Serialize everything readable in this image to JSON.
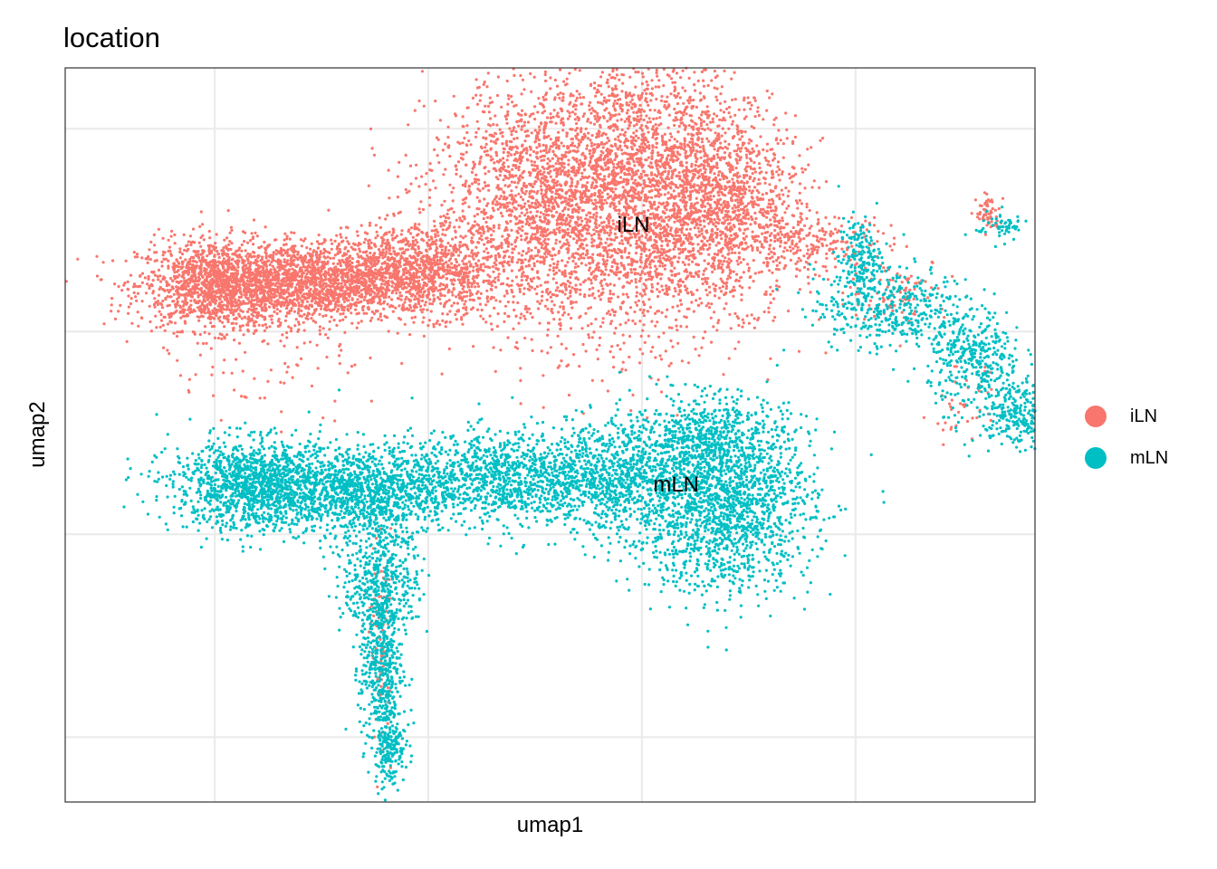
{
  "chart_data": {
    "type": "scatter",
    "title": "location",
    "xlabel": "umap1",
    "ylabel": "umap2",
    "grid": true,
    "legend_position": "right",
    "xlim": [
      -13.5,
      9.2
    ],
    "ylim": [
      -11.6,
      6.5
    ],
    "gridlines_x": [
      -10,
      -5,
      0,
      5
    ],
    "gridlines_y": [
      -10,
      -5,
      0,
      5
    ],
    "series": [
      {
        "name": "iLN",
        "color": "#F8766D",
        "clusters": [
          {
            "cx": -9.9,
            "cy": 1.15,
            "sx": 0.95,
            "sy": 0.55,
            "n": 1500
          },
          {
            "cx": -7.7,
            "cy": 1.2,
            "sx": 1.0,
            "sy": 0.5,
            "n": 1300
          },
          {
            "cx": -5.3,
            "cy": 1.5,
            "sx": 1.0,
            "sy": 0.55,
            "n": 1200
          },
          {
            "cx": -2.4,
            "cy": 3.2,
            "sx": 1.3,
            "sy": 1.5,
            "n": 1800
          },
          {
            "cx": 0.0,
            "cy": 3.4,
            "sx": 1.3,
            "sy": 1.8,
            "n": 2600
          },
          {
            "cx": 2.0,
            "cy": 3.1,
            "sx": 0.9,
            "sy": 1.2,
            "n": 1000
          },
          {
            "cx": 4.0,
            "cy": 2.2,
            "sx": 0.9,
            "sy": 0.35,
            "n": 220
          },
          {
            "cx": 6.0,
            "cy": 1.0,
            "sx": 0.6,
            "sy": 0.4,
            "n": 90
          },
          {
            "cx": 8.1,
            "cy": 2.9,
            "sx": 0.14,
            "sy": 0.22,
            "n": 60
          },
          {
            "cx": -6.1,
            "cy": -7.6,
            "sx": 0.12,
            "sy": 1.3,
            "n": 90
          },
          {
            "cx": -8.5,
            "cy": -1.0,
            "sx": 1.4,
            "sy": 0.6,
            "n": 60
          },
          {
            "cx": 7.5,
            "cy": -1.9,
            "sx": 0.4,
            "sy": 0.5,
            "n": 40
          }
        ]
      },
      {
        "name": "mLN",
        "color": "#00BFC4",
        "clusters": [
          {
            "cx": -9.0,
            "cy": -3.8,
            "sx": 1.0,
            "sy": 0.55,
            "n": 1400
          },
          {
            "cx": -6.4,
            "cy": -3.9,
            "sx": 1.0,
            "sy": 0.55,
            "n": 1100
          },
          {
            "cx": -3.4,
            "cy": -3.6,
            "sx": 1.0,
            "sy": 0.55,
            "n": 900
          },
          {
            "cx": -0.7,
            "cy": -3.6,
            "sx": 1.0,
            "sy": 0.7,
            "n": 1000
          },
          {
            "cx": 1.9,
            "cy": -4.3,
            "sx": 1.05,
            "sy": 1.05,
            "n": 1700
          },
          {
            "cx": 1.6,
            "cy": -2.6,
            "sx": 0.9,
            "sy": 0.5,
            "n": 500
          },
          {
            "cx": -6.1,
            "cy": -6.0,
            "sx": 0.45,
            "sy": 0.8,
            "n": 500
          },
          {
            "cx": -6.1,
            "cy": -8.3,
            "sx": 0.25,
            "sy": 1.0,
            "n": 450
          },
          {
            "cx": -5.9,
            "cy": -10.2,
            "sx": 0.18,
            "sy": 0.5,
            "n": 200
          },
          {
            "cx": 5.1,
            "cy": 1.8,
            "sx": 0.25,
            "sy": 0.5,
            "n": 180
          },
          {
            "cx": 5.8,
            "cy": 0.6,
            "sx": 0.9,
            "sy": 0.5,
            "n": 420
          },
          {
            "cx": 7.8,
            "cy": -0.7,
            "sx": 0.55,
            "sy": 0.6,
            "n": 350
          },
          {
            "cx": 9.0,
            "cy": -2.0,
            "sx": 0.6,
            "sy": 0.4,
            "n": 380
          },
          {
            "cx": 8.4,
            "cy": 2.6,
            "sx": 0.3,
            "sy": 0.18,
            "n": 60
          }
        ]
      }
    ],
    "annotations": [
      {
        "text": "iLN",
        "x": -0.2,
        "y": 2.6
      },
      {
        "text": "mLN",
        "x": 0.8,
        "y": -3.8
      }
    ]
  },
  "legend": {
    "items": [
      {
        "label": "iLN",
        "color": "#F8766D"
      },
      {
        "label": "mLN",
        "color": "#00BFC4"
      }
    ]
  }
}
